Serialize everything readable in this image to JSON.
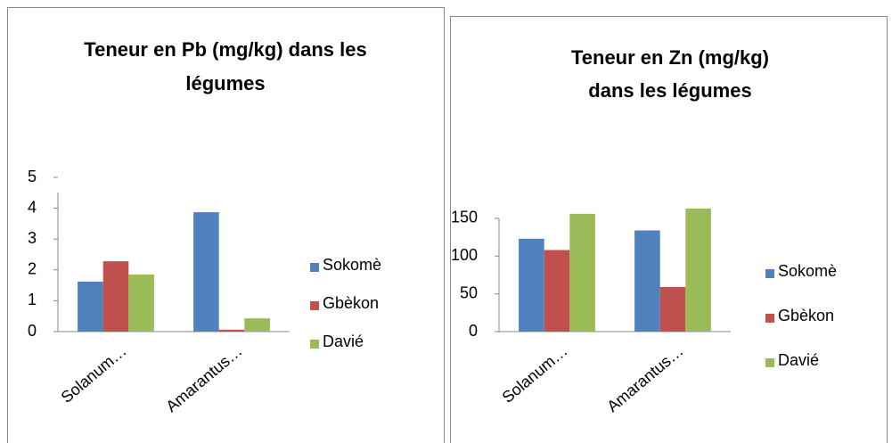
{
  "chart_data": [
    {
      "type": "bar",
      "title": [
        "Teneur en Pb (mg/kg) dans les",
        "légumes"
      ],
      "categories": [
        "Solanum…",
        "Amarantus…"
      ],
      "series": [
        {
          "name": "Sokomè",
          "color": "#4f81bd",
          "values": [
            1.62,
            3.87
          ]
        },
        {
          "name": "Gbèkon",
          "color": "#c0504d",
          "values": [
            2.28,
            0.06
          ]
        },
        {
          "name": "Davié",
          "color": "#9bbb59",
          "values": [
            1.85,
            0.43
          ]
        }
      ],
      "ylim": [
        0,
        5
      ],
      "yticks": [
        0,
        1,
        2,
        3,
        4,
        5
      ],
      "legend": "right"
    },
    {
      "type": "bar",
      "title": [
        "Teneur en Zn (mg/kg)",
        "dans les légumes"
      ],
      "categories": [
        "Solanum…",
        "Amarantus…"
      ],
      "series": [
        {
          "name": "Sokomè",
          "color": "#4f81bd",
          "values": [
            123,
            134
          ]
        },
        {
          "name": "Gbèkon",
          "color": "#c0504d",
          "values": [
            108,
            59
          ]
        },
        {
          "name": "Davié",
          "color": "#9bbb59",
          "values": [
            156,
            163
          ]
        }
      ],
      "ylim": [
        0,
        170
      ],
      "yticks": [
        0,
        50,
        100,
        150
      ],
      "legend": "right"
    }
  ]
}
